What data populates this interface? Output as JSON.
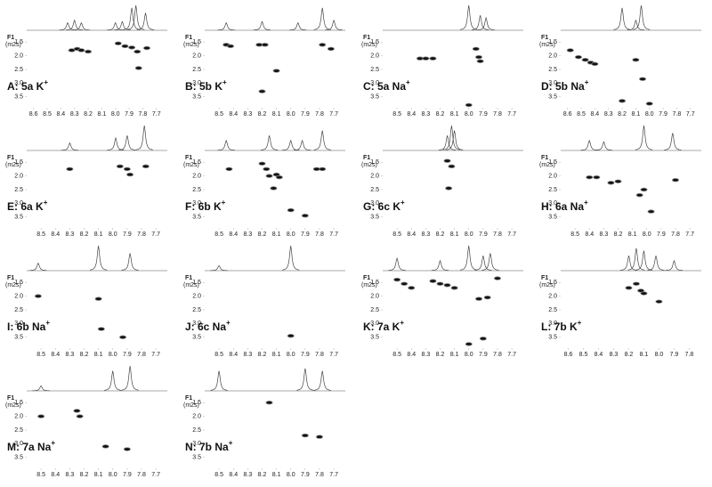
{
  "chart_data": [
    {
      "type": "scatter",
      "label": "A: 5a K",
      "charge": "+",
      "ylabel": "F1",
      "yunit": "(m2s)",
      "xlim": [
        8.65,
        7.62
      ],
      "xticks": [
        8.6,
        8.5,
        8.4,
        8.3,
        8.2,
        8.1,
        {
          "value": 8,
          "label": "8.0"
        },
        7.9,
        7.8,
        7.7
      ],
      "ylim": [
        1.2,
        3.8
      ],
      "yticks": [
        1.5,
        {
          "value": 2,
          "label": "2.0"
        },
        2.5,
        {
          "value": 3,
          "label": "3.0"
        },
        3.5
      ],
      "peaks_x": [
        8.35,
        8.3,
        8.25,
        8.0,
        7.95,
        7.88,
        7.85,
        7.78
      ],
      "peaks_h": [
        0.3,
        0.4,
        0.3,
        0.3,
        0.35,
        0.9,
        1,
        0.7
      ],
      "x": [
        8.32,
        8.28,
        8.25,
        8.2,
        7.98,
        7.93,
        7.88,
        7.84,
        7.77,
        7.83
      ],
      "y": [
        1.8,
        1.75,
        1.8,
        1.85,
        1.55,
        1.65,
        1.7,
        1.85,
        1.72,
        2.45
      ]
    },
    {
      "type": "scatter",
      "label": "B: 5b K",
      "charge": "+",
      "ylabel": "F1",
      "yunit": "(m2s)",
      "xlim": [
        8.6,
        7.62
      ],
      "xticks": [
        8.5,
        8.4,
        8.3,
        8.2,
        8.1,
        {
          "value": 8,
          "label": "8.0"
        },
        7.9,
        7.8,
        7.7
      ],
      "ylim": [
        1.2,
        3.8
      ],
      "yticks": [
        1.5,
        {
          "value": 2,
          "label": "2.0"
        },
        2.5,
        {
          "value": 3,
          "label": "3.0"
        },
        3.5
      ],
      "peaks_x": [
        8.45,
        8.2,
        7.95,
        7.78,
        7.7
      ],
      "peaks_h": [
        0.3,
        0.35,
        0.3,
        0.9,
        0.4
      ],
      "x": [
        8.45,
        8.42,
        8.22,
        8.18,
        8.1,
        7.78,
        7.72,
        8.2
      ],
      "y": [
        1.6,
        1.65,
        1.6,
        1.6,
        2.55,
        1.6,
        1.75,
        3.3
      ]
    },
    {
      "type": "scatter",
      "label": "C: 5a Na",
      "charge": "+",
      "ylabel": "F1",
      "yunit": "(m2s)",
      "xlim": [
        8.6,
        7.62
      ],
      "xticks": [
        8.5,
        8.4,
        8.3,
        8.2,
        8.1,
        {
          "value": 8,
          "label": "8.0"
        },
        7.9,
        7.8,
        7.7
      ],
      "ylim": [
        1.2,
        3.8
      ],
      "yticks": [
        1.5,
        {
          "value": 2,
          "label": "2.0"
        },
        2.5,
        {
          "value": 3,
          "label": "3.0"
        },
        3.5
      ],
      "peaks_x": [
        8.0,
        7.92,
        7.88
      ],
      "peaks_h": [
        1,
        0.6,
        0.5
      ],
      "x": [
        8.34,
        8.3,
        8.25,
        7.95,
        7.93,
        7.92,
        8.0
      ],
      "y": [
        2.1,
        2.1,
        2.1,
        1.75,
        2.05,
        2.2,
        3.8
      ]
    },
    {
      "type": "scatter",
      "label": "D: 5b Na",
      "charge": "+",
      "ylabel": "F1",
      "yunit": "(m2s)",
      "xlim": [
        8.65,
        7.62
      ],
      "xticks": [
        8.6,
        8.5,
        8.4,
        8.3,
        8.2,
        8.1,
        {
          "value": 8,
          "label": "8.0"
        },
        7.9,
        7.8,
        7.7
      ],
      "ylim": [
        1.2,
        3.8
      ],
      "yticks": [
        1.5,
        {
          "value": 2,
          "label": "2.0"
        },
        2.5,
        {
          "value": 3,
          "label": "3.0"
        },
        3.5
      ],
      "peaks_x": [
        8.2,
        8.1,
        8.06
      ],
      "peaks_h": [
        0.9,
        0.4,
        1
      ],
      "x": [
        8.58,
        8.52,
        8.47,
        8.43,
        8.4,
        8.1,
        8.05,
        8.2,
        8.0
      ],
      "y": [
        1.8,
        2.05,
        2.15,
        2.25,
        2.3,
        2.15,
        2.85,
        3.65,
        3.75
      ]
    },
    {
      "type": "scatter",
      "label": "E: 6a K",
      "charge": "+",
      "ylabel": "F1",
      "yunit": "(m2s)",
      "xlim": [
        8.6,
        7.62
      ],
      "xticks": [
        8.5,
        8.4,
        8.3,
        8.2,
        8.1,
        {
          "value": 8,
          "label": "8.0"
        },
        7.9,
        7.8,
        7.7
      ],
      "ylim": [
        1.2,
        3.8
      ],
      "yticks": [
        1.5,
        {
          "value": 2,
          "label": "2.0"
        },
        2.5,
        {
          "value": 3,
          "label": "3.0"
        },
        3.5
      ],
      "peaks_x": [
        8.3,
        7.98,
        7.9,
        7.78
      ],
      "peaks_h": [
        0.3,
        0.5,
        0.6,
        1
      ],
      "x": [
        8.3,
        7.95,
        7.9,
        7.88,
        7.77
      ],
      "y": [
        1.75,
        1.65,
        1.75,
        1.95,
        1.65
      ]
    },
    {
      "type": "scatter",
      "label": "F: 6b K",
      "charge": "+",
      "ylabel": "F1",
      "yunit": "(m2s)",
      "xlim": [
        8.6,
        7.62
      ],
      "xticks": [
        8.5,
        8.4,
        8.3,
        8.2,
        8.1,
        {
          "value": 8,
          "label": "8.0"
        },
        7.9,
        7.8,
        7.7
      ],
      "ylim": [
        1.2,
        3.8
      ],
      "yticks": [
        1.5,
        {
          "value": 2,
          "label": "2.0"
        },
        2.5,
        {
          "value": 3,
          "label": "3.0"
        },
        3.5
      ],
      "peaks_x": [
        8.45,
        8.15,
        8.0,
        7.92,
        7.78
      ],
      "peaks_h": [
        0.4,
        0.6,
        0.4,
        0.4,
        0.8
      ],
      "x": [
        8.43,
        8.2,
        8.17,
        8.15,
        8.12,
        8.1,
        8.08,
        8.0,
        7.78,
        7.82,
        7.9
      ],
      "y": [
        1.75,
        1.55,
        1.75,
        2.0,
        2.45,
        1.95,
        2.05,
        3.25,
        1.75,
        1.75,
        3.45
      ]
    },
    {
      "type": "scatter",
      "label": "G: 6c K",
      "charge": "+",
      "ylabel": "F1",
      "yunit": "(m2s)",
      "xlim": [
        8.6,
        7.62
      ],
      "xticks": [
        8.5,
        8.4,
        8.3,
        8.2,
        8.1,
        {
          "value": 8,
          "label": "8.0"
        },
        7.9,
        7.8,
        7.7
      ],
      "ylim": [
        1.2,
        3.8
      ],
      "yticks": [
        1.5,
        {
          "value": 2,
          "label": "2.0"
        },
        2.5,
        {
          "value": 3,
          "label": "3.0"
        },
        3.5
      ],
      "peaks_x": [
        8.15,
        8.12,
        8.1
      ],
      "peaks_h": [
        0.6,
        1,
        0.8
      ],
      "x": [
        8.15,
        8.12,
        8.14
      ],
      "y": [
        1.45,
        1.65,
        2.45
      ]
    },
    {
      "type": "scatter",
      "label": "H: 6a Na",
      "charge": "+",
      "ylabel": "F1",
      "yunit": "(m2s)",
      "xlim": [
        8.6,
        7.62
      ],
      "xticks": [
        8.5,
        8.4,
        8.3,
        8.2,
        8.1,
        {
          "value": 8,
          "label": "8.0"
        },
        7.9,
        7.8,
        7.7
      ],
      "ylim": [
        1.2,
        3.8
      ],
      "yticks": [
        1.5,
        {
          "value": 2,
          "label": "2.0"
        },
        2.5,
        {
          "value": 3,
          "label": "3.0"
        },
        3.5
      ],
      "peaks_x": [
        8.4,
        8.3,
        8.02,
        7.82
      ],
      "peaks_h": [
        0.4,
        0.35,
        1,
        0.7
      ],
      "x": [
        8.4,
        8.35,
        8.25,
        8.2,
        8.05,
        8.02,
        7.97,
        7.8
      ],
      "y": [
        2.05,
        2.05,
        2.25,
        2.2,
        2.7,
        2.5,
        3.3,
        2.15
      ]
    },
    {
      "type": "scatter",
      "label": "I: 6b Na",
      "charge": "+",
      "ylabel": "F1",
      "yunit": "(m2s)",
      "xlim": [
        8.6,
        7.62
      ],
      "xticks": [
        8.5,
        8.4,
        8.3,
        8.2,
        8.1,
        {
          "value": 8,
          "label": "8.0"
        },
        7.9,
        7.8,
        7.7
      ],
      "ylim": [
        1.2,
        3.8
      ],
      "yticks": [
        1.5,
        {
          "value": 2,
          "label": "2.0"
        },
        2.5,
        {
          "value": 3,
          "label": "3.0"
        },
        3.5
      ],
      "peaks_x": [
        8.52,
        8.1,
        7.88
      ],
      "peaks_h": [
        0.3,
        1,
        0.7
      ],
      "x": [
        8.52,
        8.1,
        8.08,
        7.93
      ],
      "y": [
        2.0,
        2.1,
        3.2,
        3.5
      ]
    },
    {
      "type": "scatter",
      "label": "J: 6c Na",
      "charge": "+",
      "ylabel": "F1",
      "yunit": "(m2s)",
      "xlim": [
        8.6,
        7.62
      ],
      "xticks": [
        8.5,
        8.4,
        8.3,
        8.2,
        8.1,
        {
          "value": 8,
          "label": "8.0"
        },
        7.9,
        7.8,
        7.7
      ],
      "ylim": [
        1.2,
        3.8
      ],
      "yticks": [
        1.5,
        {
          "value": 2,
          "label": "2.0"
        },
        2.5,
        {
          "value": 3,
          "label": "3.0"
        },
        3.5
      ],
      "peaks_x": [
        8.5,
        8.0
      ],
      "peaks_h": [
        0.2,
        1
      ],
      "x": [
        8.0
      ],
      "y": [
        3.45
      ]
    },
    {
      "type": "scatter",
      "label": "K: 7a K",
      "charge": "+",
      "ylabel": "F1",
      "yunit": "(m2s)",
      "xlim": [
        8.6,
        7.62
      ],
      "xticks": [
        8.5,
        8.4,
        8.3,
        8.2,
        8.1,
        {
          "value": 8,
          "label": "8.0"
        },
        7.9,
        7.8,
        7.7
      ],
      "ylim": [
        1.2,
        3.8
      ],
      "yticks": [
        1.5,
        {
          "value": 2,
          "label": "2.0"
        },
        2.5,
        {
          "value": 3,
          "label": "3.0"
        },
        3.5
      ],
      "peaks_x": [
        8.5,
        8.2,
        8.0,
        7.9,
        7.85
      ],
      "peaks_h": [
        0.5,
        0.4,
        1,
        0.6,
        0.7
      ],
      "x": [
        8.5,
        8.45,
        8.4,
        8.25,
        8.2,
        8.15,
        8.1,
        7.93,
        7.87,
        7.8,
        7.9,
        8.0
      ],
      "y": [
        1.4,
        1.55,
        1.7,
        1.45,
        1.55,
        1.6,
        1.7,
        2.1,
        2.05,
        1.35,
        3.55,
        3.75
      ]
    },
    {
      "type": "scatter",
      "label": "L: 7b K",
      "charge": "+",
      "ylabel": "F1",
      "yunit": "(m2s)",
      "xlim": [
        8.65,
        7.72
      ],
      "xticks": [
        8.6,
        8.5,
        8.4,
        8.3,
        8.2,
        8.1,
        {
          "value": 8,
          "label": "8.0"
        },
        7.9,
        7.8
      ],
      "ylim": [
        1.2,
        3.8
      ],
      "yticks": [
        1.5,
        {
          "value": 2,
          "label": "2.0"
        },
        2.5,
        {
          "value": 3,
          "label": "3.0"
        },
        3.5
      ],
      "peaks_x": [
        8.2,
        8.15,
        8.1,
        8.02,
        7.9
      ],
      "peaks_h": [
        0.6,
        0.9,
        0.8,
        0.6,
        0.4
      ],
      "x": [
        8.2,
        8.15,
        8.12,
        8.1,
        8.0
      ],
      "y": [
        1.7,
        1.55,
        1.8,
        1.9,
        2.2
      ]
    },
    {
      "type": "scatter",
      "label": "M: 7a Na",
      "charge": "+",
      "ylabel": "F1",
      "yunit": "(m2s)",
      "xlim": [
        8.6,
        7.62
      ],
      "xticks": [
        8.5,
        8.4,
        8.3,
        8.2,
        8.1,
        {
          "value": 8,
          "label": "8.0"
        },
        7.9,
        7.8,
        7.7
      ],
      "ylim": [
        1.2,
        3.8
      ],
      "yticks": [
        1.5,
        {
          "value": 2,
          "label": "2.0"
        },
        2.5,
        {
          "value": 3,
          "label": "3.0"
        },
        3.5
      ],
      "peaks_x": [
        8.5,
        8.0,
        7.88
      ],
      "peaks_h": [
        0.2,
        0.8,
        1
      ],
      "x": [
        8.5,
        8.25,
        8.23,
        8.05,
        7.9
      ],
      "y": [
        2.0,
        1.8,
        2.0,
        3.1,
        3.2
      ]
    },
    {
      "type": "scatter",
      "label": "N: 7b Na",
      "charge": "+",
      "ylabel": "F1",
      "yunit": "(m2s)",
      "xlim": [
        8.6,
        7.62
      ],
      "xticks": [
        8.5,
        8.4,
        8.3,
        8.2,
        8.1,
        {
          "value": 8,
          "label": "8.0"
        },
        7.9,
        7.8,
        7.7
      ],
      "ylim": [
        1.2,
        3.8
      ],
      "yticks": [
        1.5,
        {
          "value": 2,
          "label": "2.0"
        },
        2.5,
        {
          "value": 3,
          "label": "3.0"
        },
        3.5
      ],
      "peaks_x": [
        8.5,
        7.9,
        7.78
      ],
      "peaks_h": [
        0.8,
        0.9,
        0.8
      ],
      "x": [
        8.15,
        7.9,
        7.8
      ],
      "y": [
        1.5,
        2.7,
        2.75
      ]
    }
  ]
}
